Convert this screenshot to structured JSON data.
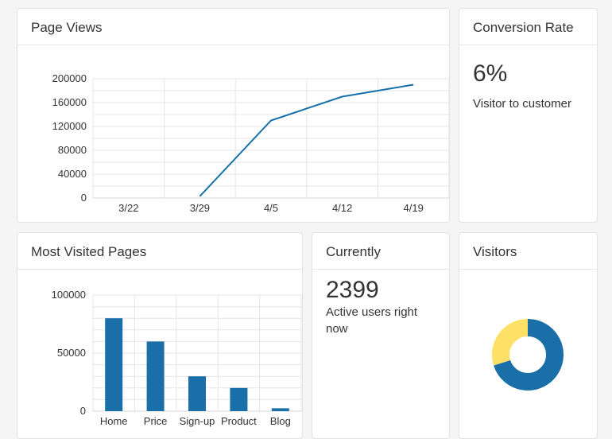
{
  "colors": {
    "line": "#1570aa",
    "bar": "#1b6fa8",
    "donut_blue": "#1b6fa8",
    "donut_yellow": "#fde066"
  },
  "page_views": {
    "title": "Page Views"
  },
  "conversion": {
    "title": "Conversion Rate",
    "value": "6%",
    "label": "Visitor to customer"
  },
  "most_visited": {
    "title": "Most Visited Pages"
  },
  "currently": {
    "title": "Currently",
    "value": "2399",
    "label": "Active users right now"
  },
  "visitors": {
    "title": "Visitors"
  },
  "chart_data": [
    {
      "type": "line",
      "x": [
        "3/29",
        "4/5",
        "4/12",
        "4/19"
      ],
      "x_ticks": [
        "3/22",
        "3/29",
        "4/5",
        "4/12",
        "4/19"
      ],
      "series": [
        {
          "values": [
            3000,
            130000,
            170000,
            190000
          ]
        }
      ],
      "y_ticks": [
        0,
        40000,
        80000,
        120000,
        160000,
        200000
      ],
      "ylim": [
        0,
        200000
      ],
      "grid": true
    },
    {
      "type": "bar",
      "categories": [
        "Home",
        "Price",
        "Sign-up",
        "Product",
        "Blog"
      ],
      "values": [
        80000,
        60000,
        30000,
        20000,
        2500
      ],
      "y_ticks": [
        0,
        50000,
        100000
      ],
      "ylim": [
        0,
        100000
      ],
      "grid": true
    },
    {
      "type": "pie",
      "donut": true,
      "slices": [
        {
          "value": 70,
          "color": "#1b6fa8"
        },
        {
          "value": 30,
          "color": "#fde066"
        }
      ]
    }
  ]
}
